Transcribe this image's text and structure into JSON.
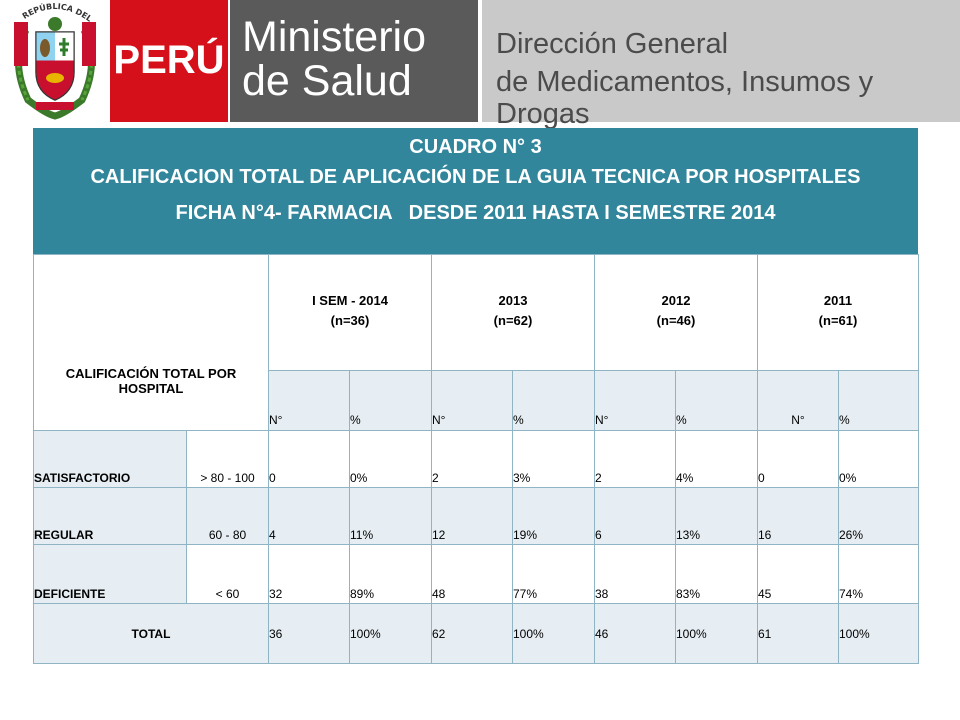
{
  "header": {
    "peru": "PERÚ",
    "ministry_line1": "Ministerio",
    "ministry_line2": "de Salud",
    "direction_line1": "Dirección General",
    "direction_line2": "de Medicamentos, Insumos y Drogas",
    "crest_text": "REPÚBLICA DEL PERÚ"
  },
  "title": {
    "line1": "CUADRO N° 3",
    "line2": "CALIFICACION TOTAL DE APLICACIÓN DE LA GUIA TECNICA POR HOSPITALES",
    "line3": "FICHA N°4- FARMACIA   DESDE 2011 HASTA I SEMESTRE 2014"
  },
  "table": {
    "row_header": "CALIFICACIÓN TOTAL POR HOSPITAL",
    "periods": [
      {
        "label": "I SEM - 2014",
        "n": "(n=36)"
      },
      {
        "label": "2013",
        "n": "(n=62)"
      },
      {
        "label": "2012",
        "n": "(n=46)"
      },
      {
        "label": "2011",
        "n": "(n=61)"
      }
    ],
    "sub_n": "N°",
    "sub_pct": "%",
    "rows": [
      {
        "label": "SATISFACTORIO",
        "range": "> 80 - 100",
        "values": [
          "0",
          "0%",
          "2",
          "3%",
          "2",
          "4%",
          "0",
          "0%"
        ]
      },
      {
        "label": "REGULAR",
        "range": "60 - 80",
        "values": [
          "4",
          "11%",
          "12",
          "19%",
          "6",
          "13%",
          "16",
          "26%"
        ]
      },
      {
        "label": "DEFICIENTE",
        "range": "< 60",
        "values": [
          "32",
          "89%",
          "48",
          "77%",
          "38",
          "83%",
          "45",
          "74%"
        ]
      }
    ],
    "total": {
      "label": "TOTAL",
      "values": [
        "36",
        "100%",
        "62",
        "100%",
        "46",
        "100%",
        "61",
        "100%"
      ]
    }
  },
  "colors": {
    "title_bg": "#31869b",
    "peru_red": "#d6101a",
    "ministry_gray": "#5a5a5a",
    "direction_gray": "#c9c9c9",
    "cell_shade": "#e6eef3"
  }
}
